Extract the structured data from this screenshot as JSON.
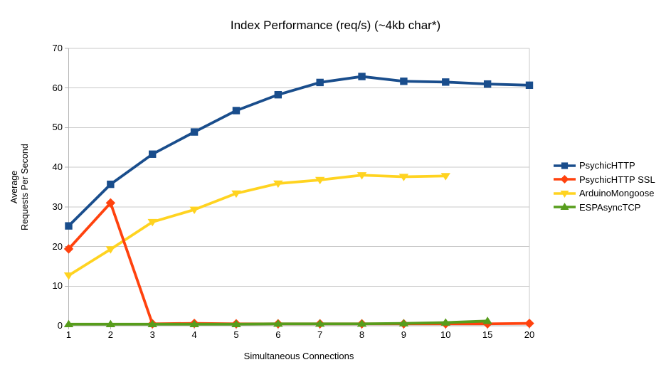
{
  "chart_data": {
    "type": "line",
    "title": "Index Performance (req/s) (~4kb char*)",
    "xlabel": "Simultaneous Connections",
    "ylabel": "Average Requests Per Second",
    "ylabel_lines": [
      "Average",
      "Requests Per Second"
    ],
    "categories": [
      "1",
      "2",
      "3",
      "4",
      "5",
      "6",
      "7",
      "8",
      "9",
      "10",
      "15",
      "20"
    ],
    "y_ticks": [
      0,
      10,
      20,
      30,
      40,
      50,
      60,
      70
    ],
    "ylim": [
      0,
      70
    ],
    "grid": "horizontal",
    "legend_position": "right",
    "series": [
      {
        "name": "PsychicHTTP",
        "color": "#194D8C",
        "marker": "square",
        "values": [
          25.2,
          35.7,
          43.3,
          48.9,
          54.3,
          58.3,
          61.4,
          62.9,
          61.7,
          61.5,
          61.0,
          60.7
        ]
      },
      {
        "name": "PsychicHTTP SSL",
        "color": "#FF420E",
        "marker": "diamond",
        "values": [
          19.4,
          31.0,
          0.5,
          0.6,
          0.5,
          0.5,
          0.5,
          0.5,
          0.5,
          0.5,
          0.5,
          0.6
        ]
      },
      {
        "name": "ArduinoMongoose",
        "color": "#FFD320",
        "marker": "triangle-down",
        "values": [
          12.7,
          19.3,
          26.2,
          29.3,
          33.4,
          35.9,
          36.8,
          38.0,
          37.6,
          37.8,
          null,
          null
        ]
      },
      {
        "name": "ESPAsyncTCP",
        "color": "#579D1C",
        "marker": "triangle-up",
        "values": [
          0.4,
          0.4,
          0.4,
          0.4,
          0.4,
          0.5,
          0.5,
          0.5,
          0.6,
          0.8,
          1.2,
          null
        ]
      }
    ],
    "style": {
      "grid_color": "#C9C9C9",
      "axis_color": "#B3B3B3",
      "text_color": "#000000",
      "background": "#FFFFFF"
    }
  }
}
